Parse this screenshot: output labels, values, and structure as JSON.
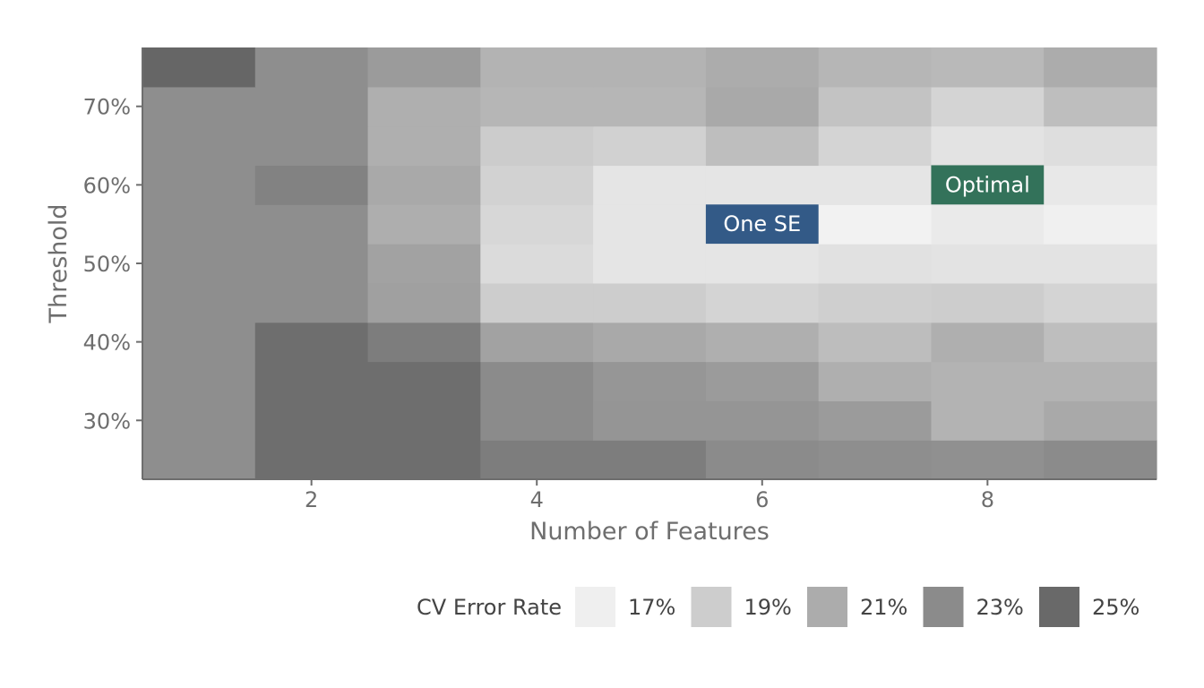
{
  "chart_data": {
    "type": "heatmap",
    "xlabel": "Number of Features",
    "ylabel": "Threshold",
    "x": [
      1,
      2,
      3,
      4,
      5,
      6,
      7,
      8,
      9
    ],
    "y": [
      0.25,
      0.3,
      0.35,
      0.4,
      0.45,
      0.5,
      0.55,
      0.6,
      0.65,
      0.7,
      0.75
    ],
    "x_ticks": [
      2,
      4,
      6,
      8
    ],
    "x_tick_labels": [
      "2",
      "4",
      "6",
      "8"
    ],
    "y_ticks": [
      0.3,
      0.4,
      0.5,
      0.6,
      0.7
    ],
    "y_tick_labels": [
      "30%",
      "40%",
      "50%",
      "60%",
      "70%"
    ],
    "xlim": [
      0.5,
      9.5
    ],
    "ylim": [
      0.225,
      0.775
    ],
    "values": [
      [
        0.228,
        0.247,
        0.247,
        0.2385,
        0.2385,
        0.23,
        0.228,
        0.227,
        0.23
      ],
      [
        0.228,
        0.247,
        0.247,
        0.23,
        0.224,
        0.224,
        0.22,
        0.206,
        0.212
      ],
      [
        0.228,
        0.247,
        0.247,
        0.23,
        0.223,
        0.22,
        0.208,
        0.206,
        0.206
      ],
      [
        0.228,
        0.247,
        0.238,
        0.216,
        0.212,
        0.208,
        0.2,
        0.208,
        0.199
      ],
      [
        0.228,
        0.228,
        0.217,
        0.19,
        0.19,
        0.186,
        0.189,
        0.19,
        0.186
      ],
      [
        0.228,
        0.228,
        0.216,
        0.182,
        0.176,
        0.176,
        0.178,
        0.177,
        0.177
      ],
      [
        0.228,
        0.228,
        0.209,
        0.184,
        0.176,
        0.176,
        0.168,
        0.173,
        0.169
      ],
      [
        0.228,
        0.235,
        0.212,
        0.187,
        0.176,
        0.176,
        0.176,
        0.176,
        0.174
      ],
      [
        0.228,
        0.228,
        0.208,
        0.191,
        0.188,
        0.199,
        0.186,
        0.177,
        0.18
      ],
      [
        0.228,
        0.228,
        0.208,
        0.204,
        0.204,
        0.212,
        0.196,
        0.186,
        0.199
      ],
      [
        0.252,
        0.228,
        0.22,
        0.206,
        0.206,
        0.21,
        0.204,
        0.202,
        0.21
      ]
    ],
    "annotations": [
      {
        "text": "One SE",
        "x": 6,
        "y": 0.55,
        "color": "#335a87"
      },
      {
        "text": "Optimal",
        "x": 8,
        "y": 0.6,
        "color": "#33725a"
      }
    ],
    "legend": {
      "title": "CV Error Rate",
      "position": "bottom",
      "items": [
        {
          "label": "17%",
          "value": 0.17
        },
        {
          "label": "19%",
          "value": 0.19
        },
        {
          "label": "21%",
          "value": 0.21
        },
        {
          "label": "23%",
          "value": 0.23
        },
        {
          "label": "25%",
          "value": 0.25
        }
      ]
    },
    "color_scale": {
      "low": "#f7f7f7",
      "high": "#666666",
      "domain": [
        0.165,
        0.252
      ]
    }
  }
}
